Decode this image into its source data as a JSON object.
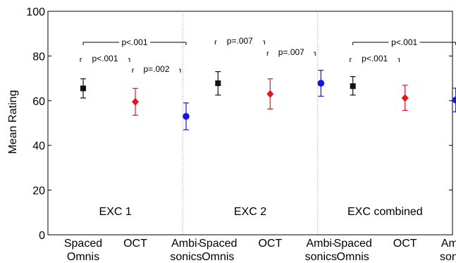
{
  "chart_data": {
    "type": "scatter",
    "ylabel": "Mean Rating",
    "ylim": [
      0,
      100
    ],
    "yticks": [
      0,
      20,
      40,
      60,
      80,
      100
    ],
    "grid": false,
    "categories": [
      [
        "Spaced",
        "Omnis"
      ],
      [
        "OCT",
        ""
      ],
      [
        "Ambi-",
        "sonics"
      ],
      [
        "Spaced",
        "Omnis"
      ],
      [
        "OCT",
        ""
      ],
      [
        "Ambi-",
        "sonics"
      ],
      [
        "Spaced",
        "Omnis"
      ],
      [
        "OCT",
        ""
      ],
      [
        "Ambi-",
        "sonics"
      ]
    ],
    "panels": [
      {
        "label": "EXC 1",
        "points": [
          {
            "category": "Spaced Omnis",
            "mean": 65.5,
            "low": 61.2,
            "high": 69.8,
            "marker": "square",
            "color": "#111111"
          },
          {
            "category": "OCT",
            "mean": 59.5,
            "low": 53.5,
            "high": 65.5,
            "marker": "diamond",
            "color": "#e8141b"
          },
          {
            "category": "Ambisonics",
            "mean": 53.0,
            "low": 47.0,
            "high": 59.0,
            "marker": "circle",
            "color": "#1414e6"
          }
        ],
        "significance": [
          {
            "text": "p<.001",
            "from": 0,
            "to": 2
          },
          {
            "text": "p<.001",
            "from": 0,
            "to": 1
          },
          {
            "text": "p=.002",
            "from": 1,
            "to": 2
          }
        ]
      },
      {
        "label": "EXC 2",
        "points": [
          {
            "category": "Spaced Omnis",
            "mean": 67.8,
            "low": 62.5,
            "high": 73.0,
            "marker": "square",
            "color": "#111111"
          },
          {
            "category": "OCT",
            "mean": 63.0,
            "low": 56.3,
            "high": 69.8,
            "marker": "diamond",
            "color": "#e8141b"
          },
          {
            "category": "Ambisonics",
            "mean": 67.8,
            "low": 62.0,
            "high": 73.6,
            "marker": "circle",
            "color": "#1414e6"
          }
        ],
        "significance": [
          {
            "text": "p=.007",
            "from": 0,
            "to": 1
          },
          {
            "text": "p=.007",
            "from": 1,
            "to": 2
          }
        ]
      },
      {
        "label": "EXC combined",
        "points": [
          {
            "category": "Spaced Omnis",
            "mean": 66.5,
            "low": 62.5,
            "high": 70.8,
            "marker": "square",
            "color": "#111111"
          },
          {
            "category": "OCT",
            "mean": 61.2,
            "low": 55.7,
            "high": 66.9,
            "marker": "diamond",
            "color": "#e8141b"
          },
          {
            "category": "Ambisonics",
            "mean": 60.3,
            "low": 55.0,
            "high": 65.6,
            "marker": "circle",
            "color": "#1414e6"
          }
        ],
        "significance": [
          {
            "text": "p<.001",
            "from": 0,
            "to": 2
          },
          {
            "text": "p<.001",
            "from": 0,
            "to": 1
          }
        ]
      }
    ]
  }
}
